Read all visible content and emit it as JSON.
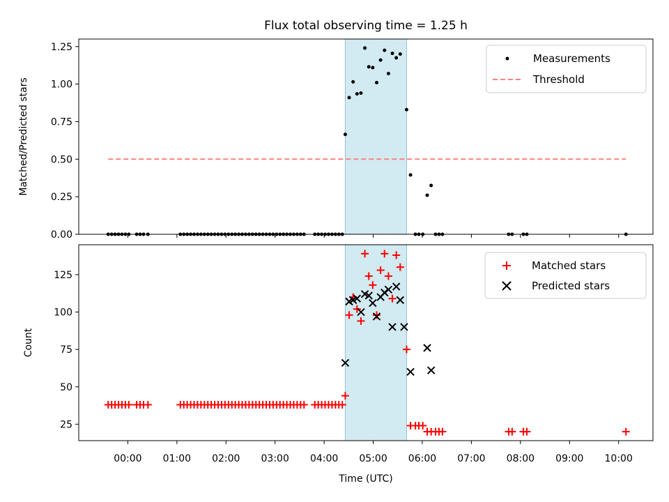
{
  "title": "Flux total observing time = 1.25 h",
  "colors": {
    "measurement": "#000000",
    "threshold": "#ff7f7f",
    "matched": "#ff0000",
    "predicted": "#000000",
    "highlight": "#add8e6"
  },
  "chart_data": [
    {
      "type": "scatter",
      "ylabel": "Matched/Predicted stars",
      "ylim": [
        0,
        1.3
      ],
      "yticks": [
        0,
        0.25,
        0.5,
        0.75,
        1.0,
        1.25
      ],
      "ytick_labels": [
        "0.00",
        "0.25",
        "0.50",
        "0.75",
        "1.00",
        "1.25"
      ],
      "xlim_hours": [
        -1.0,
        10.7
      ],
      "highlight_span_hours": [
        4.43,
        5.68
      ],
      "legend": {
        "placement": "upper right",
        "entries": [
          "Measurements",
          "Threshold"
        ]
      },
      "threshold": {
        "name": "Threshold",
        "value": 0.5,
        "x_range_hours": [
          -0.4,
          10.15
        ]
      },
      "series": [
        {
          "name": "Measurements",
          "points": [
            [
              -0.4,
              0
            ],
            [
              -0.33,
              0
            ],
            [
              -0.26,
              0
            ],
            [
              -0.19,
              0
            ],
            [
              -0.12,
              0
            ],
            [
              -0.05,
              0
            ],
            [
              0.02,
              0
            ],
            [
              0.18,
              0
            ],
            [
              0.25,
              0
            ],
            [
              0.32,
              0
            ],
            [
              0.41,
              0
            ],
            [
              1.07,
              0
            ],
            [
              1.14,
              0
            ],
            [
              1.21,
              0
            ],
            [
              1.28,
              0
            ],
            [
              1.35,
              0
            ],
            [
              1.42,
              0
            ],
            [
              1.49,
              0
            ],
            [
              1.56,
              0
            ],
            [
              1.63,
              0
            ],
            [
              1.7,
              0
            ],
            [
              1.77,
              0
            ],
            [
              1.84,
              0
            ],
            [
              1.91,
              0
            ],
            [
              1.98,
              0
            ],
            [
              2.05,
              0
            ],
            [
              2.12,
              0
            ],
            [
              2.19,
              0
            ],
            [
              2.26,
              0
            ],
            [
              2.33,
              0
            ],
            [
              2.4,
              0
            ],
            [
              2.47,
              0
            ],
            [
              2.54,
              0
            ],
            [
              2.61,
              0
            ],
            [
              2.68,
              0
            ],
            [
              2.75,
              0
            ],
            [
              2.82,
              0
            ],
            [
              2.89,
              0
            ],
            [
              2.96,
              0
            ],
            [
              3.03,
              0
            ],
            [
              3.1,
              0
            ],
            [
              3.17,
              0
            ],
            [
              3.24,
              0
            ],
            [
              3.31,
              0
            ],
            [
              3.38,
              0
            ],
            [
              3.45,
              0
            ],
            [
              3.52,
              0
            ],
            [
              3.59,
              0
            ],
            [
              3.81,
              0
            ],
            [
              3.88,
              0
            ],
            [
              3.95,
              0
            ],
            [
              4.02,
              0
            ],
            [
              4.09,
              0
            ],
            [
              4.16,
              0
            ],
            [
              4.23,
              0
            ],
            [
              4.3,
              0
            ],
            [
              4.37,
              0
            ],
            [
              4.43,
              0.665
            ],
            [
              4.51,
              0.91
            ],
            [
              4.59,
              1.015
            ],
            [
              4.67,
              0.935
            ],
            [
              4.75,
              0.94
            ],
            [
              4.83,
              1.24
            ],
            [
              4.91,
              1.115
            ],
            [
              4.99,
              1.11
            ],
            [
              5.07,
              1.01
            ],
            [
              5.15,
              1.16
            ],
            [
              5.23,
              1.225
            ],
            [
              5.31,
              1.07
            ],
            [
              5.39,
              1.205
            ],
            [
              5.47,
              1.175
            ],
            [
              5.55,
              1.2
            ],
            [
              5.68,
              0.83
            ],
            [
              5.76,
              0.395
            ],
            [
              5.86,
              0
            ],
            [
              5.93,
              0
            ],
            [
              6.01,
              0
            ],
            [
              6.1,
              0.26
            ],
            [
              6.18,
              0.325
            ],
            [
              6.27,
              0
            ],
            [
              6.34,
              0
            ],
            [
              6.41,
              0
            ],
            [
              7.76,
              0
            ],
            [
              7.83,
              0
            ],
            [
              8.06,
              0
            ],
            [
              8.13,
              0
            ],
            [
              10.15,
              0
            ]
          ]
        }
      ]
    },
    {
      "type": "scatter",
      "xlabel": "Time (UTC)",
      "ylabel": "Count",
      "ylim": [
        14,
        145
      ],
      "yticks": [
        25,
        50,
        75,
        100,
        125
      ],
      "ytick_labels": [
        "25",
        "50",
        "75",
        "100",
        "125"
      ],
      "xlim_hours": [
        -1.0,
        10.7
      ],
      "xticks_hours": [
        0,
        1,
        2,
        3,
        4,
        5,
        6,
        7,
        8,
        9,
        10
      ],
      "xtick_labels": [
        "00:00",
        "01:00",
        "02:00",
        "03:00",
        "04:00",
        "05:00",
        "06:00",
        "07:00",
        "08:00",
        "09:00",
        "10:00"
      ],
      "highlight_span_hours": [
        4.43,
        5.68
      ],
      "legend": {
        "placement": "upper right",
        "entries": [
          "Matched stars",
          "Predicted stars"
        ]
      },
      "series": [
        {
          "name": "Matched stars",
          "marker": "plus",
          "points": [
            [
              -0.4,
              38
            ],
            [
              -0.33,
              38
            ],
            [
              -0.26,
              38
            ],
            [
              -0.19,
              38
            ],
            [
              -0.12,
              38
            ],
            [
              -0.05,
              38
            ],
            [
              0.02,
              38
            ],
            [
              0.18,
              38
            ],
            [
              0.25,
              38
            ],
            [
              0.32,
              38
            ],
            [
              0.41,
              38
            ],
            [
              1.07,
              38
            ],
            [
              1.14,
              38
            ],
            [
              1.21,
              38
            ],
            [
              1.28,
              38
            ],
            [
              1.35,
              38
            ],
            [
              1.42,
              38
            ],
            [
              1.49,
              38
            ],
            [
              1.56,
              38
            ],
            [
              1.63,
              38
            ],
            [
              1.7,
              38
            ],
            [
              1.77,
              38
            ],
            [
              1.84,
              38
            ],
            [
              1.91,
              38
            ],
            [
              1.98,
              38
            ],
            [
              2.05,
              38
            ],
            [
              2.12,
              38
            ],
            [
              2.19,
              38
            ],
            [
              2.26,
              38
            ],
            [
              2.33,
              38
            ],
            [
              2.4,
              38
            ],
            [
              2.47,
              38
            ],
            [
              2.54,
              38
            ],
            [
              2.61,
              38
            ],
            [
              2.68,
              38
            ],
            [
              2.75,
              38
            ],
            [
              2.82,
              38
            ],
            [
              2.89,
              38
            ],
            [
              2.96,
              38
            ],
            [
              3.03,
              38
            ],
            [
              3.1,
              38
            ],
            [
              3.17,
              38
            ],
            [
              3.24,
              38
            ],
            [
              3.31,
              38
            ],
            [
              3.38,
              38
            ],
            [
              3.45,
              38
            ],
            [
              3.52,
              38
            ],
            [
              3.59,
              38
            ],
            [
              3.81,
              38
            ],
            [
              3.88,
              38
            ],
            [
              3.95,
              38
            ],
            [
              4.02,
              38
            ],
            [
              4.09,
              38
            ],
            [
              4.16,
              38
            ],
            [
              4.23,
              38
            ],
            [
              4.3,
              38
            ],
            [
              4.37,
              38
            ],
            [
              4.43,
              44
            ],
            [
              4.51,
              98
            ],
            [
              4.59,
              110
            ],
            [
              4.67,
              102
            ],
            [
              4.75,
              94
            ],
            [
              4.83,
              139
            ],
            [
              4.91,
              124
            ],
            [
              4.99,
              118
            ],
            [
              5.07,
              98
            ],
            [
              5.15,
              128
            ],
            [
              5.23,
              139
            ],
            [
              5.31,
              124
            ],
            [
              5.39,
              109
            ],
            [
              5.47,
              138
            ],
            [
              5.55,
              130
            ],
            [
              5.68,
              75
            ],
            [
              5.76,
              24
            ],
            [
              5.86,
              24
            ],
            [
              5.93,
              24
            ],
            [
              6.01,
              24
            ],
            [
              6.1,
              20
            ],
            [
              6.18,
              20
            ],
            [
              6.27,
              20
            ],
            [
              6.34,
              20
            ],
            [
              6.41,
              20
            ],
            [
              7.76,
              20
            ],
            [
              7.83,
              20
            ],
            [
              8.06,
              20
            ],
            [
              8.13,
              20
            ],
            [
              10.15,
              20
            ]
          ]
        },
        {
          "name": "Predicted stars",
          "marker": "x",
          "points": [
            [
              4.43,
              66
            ],
            [
              4.51,
              107
            ],
            [
              4.59,
              108
            ],
            [
              4.67,
              109
            ],
            [
              4.75,
              100
            ],
            [
              4.83,
              112
            ],
            [
              4.91,
              111
            ],
            [
              4.99,
              106
            ],
            [
              5.07,
              97
            ],
            [
              5.15,
              110
            ],
            [
              5.23,
              113
            ],
            [
              5.31,
              115
            ],
            [
              5.39,
              90
            ],
            [
              5.47,
              117
            ],
            [
              5.55,
              108
            ],
            [
              5.63,
              90
            ],
            [
              5.76,
              60
            ],
            [
              6.1,
              76
            ],
            [
              6.18,
              61
            ]
          ]
        }
      ]
    }
  ]
}
